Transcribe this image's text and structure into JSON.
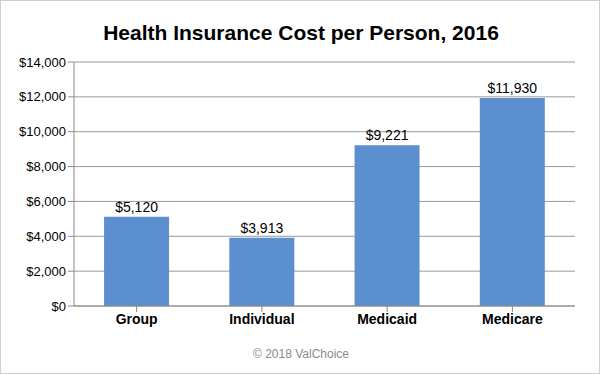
{
  "chart_data": {
    "type": "bar",
    "title": "Health Insurance Cost per Person, 2016",
    "categories": [
      "Group",
      "Individual",
      "Medicaid",
      "Medicare"
    ],
    "values": [
      5120,
      3913,
      9221,
      11930
    ],
    "value_labels": [
      "$5,120",
      "$3,913",
      "$9,221",
      "$11,930"
    ],
    "color": "#5b8fd0",
    "ylim": [
      0,
      14000
    ],
    "yticks": [
      {
        "value": 0,
        "label": "$0"
      },
      {
        "value": 2000,
        "label": "$2,000"
      },
      {
        "value": 4000,
        "label": "$4,000"
      },
      {
        "value": 6000,
        "label": "$6,000"
      },
      {
        "value": 8000,
        "label": "$8,000"
      },
      {
        "value": 10000,
        "label": "$10,000"
      },
      {
        "value": 12000,
        "label": "$12,000"
      },
      {
        "value": 14000,
        "label": "$14,000"
      }
    ],
    "grid": true,
    "data_labels": true,
    "source": "© 2018 ValChoice"
  }
}
